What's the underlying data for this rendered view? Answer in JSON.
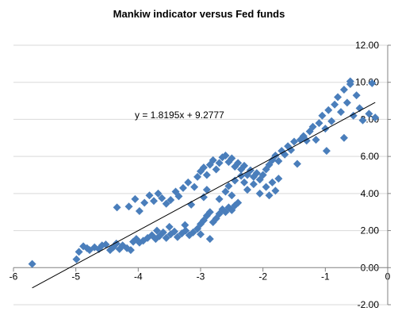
{
  "chart_data": {
    "type": "scatter",
    "title": "Mankiw indicator versus Fed funds",
    "xlim": [
      -6,
      0
    ],
    "ylim": [
      -2,
      12
    ],
    "x_ticks": [
      "-6",
      "-5",
      "-4",
      "-3",
      "-2",
      "-1",
      "0"
    ],
    "y_ticks": [
      "12.00",
      "10.00",
      "8.00",
      "6.00",
      "4.00",
      "2.00",
      "0.00",
      "-2.00"
    ],
    "grid": true,
    "marker_color": "#4a7ebb",
    "trendline": {
      "slope": 1.8195,
      "intercept": 9.2777,
      "x_range": [
        -5.7,
        -0.2
      ],
      "label": "y = 1.8195x + 9.2777"
    },
    "points": [
      [
        -5.7,
        0.2
      ],
      [
        -4.99,
        0.45
      ],
      [
        -4.95,
        0.85
      ],
      [
        -4.88,
        1.15
      ],
      [
        -4.82,
        1.05
      ],
      [
        -4.78,
        0.95
      ],
      [
        -4.7,
        1.1
      ],
      [
        -4.63,
        1.0
      ],
      [
        -4.58,
        1.2
      ],
      [
        -4.52,
        1.25
      ],
      [
        -4.45,
        0.95
      ],
      [
        -4.4,
        1.1
      ],
      [
        -4.35,
        1.3
      ],
      [
        -4.3,
        1.0
      ],
      [
        -4.25,
        1.2
      ],
      [
        -4.18,
        1.05
      ],
      [
        -4.12,
        0.95
      ],
      [
        -4.08,
        1.4
      ],
      [
        -4.03,
        1.55
      ],
      [
        -3.98,
        1.35
      ],
      [
        -3.92,
        1.45
      ],
      [
        -3.85,
        1.6
      ],
      [
        -3.78,
        1.75
      ],
      [
        -3.72,
        1.55
      ],
      [
        -3.66,
        1.7
      ],
      [
        -3.6,
        1.9
      ],
      [
        -3.55,
        1.6
      ],
      [
        -3.48,
        1.8
      ],
      [
        -3.42,
        1.95
      ],
      [
        -3.37,
        1.65
      ],
      [
        -3.3,
        1.85
      ],
      [
        -3.24,
        2.0
      ],
      [
        -3.18,
        1.75
      ],
      [
        -3.12,
        1.9
      ],
      [
        -3.05,
        2.1
      ],
      [
        -3.0,
        2.35
      ],
      [
        -2.95,
        2.55
      ],
      [
        -2.9,
        2.8
      ],
      [
        -2.85,
        3.0
      ],
      [
        -2.8,
        2.45
      ],
      [
        -2.75,
        2.65
      ],
      [
        -2.7,
        2.9
      ],
      [
        -2.65,
        3.15
      ],
      [
        -2.6,
        3.0
      ],
      [
        -2.55,
        3.25
      ],
      [
        -2.5,
        3.1
      ],
      [
        -2.45,
        3.35
      ],
      [
        -2.4,
        3.5
      ],
      [
        -4.34,
        3.25
      ],
      [
        -4.15,
        3.3
      ],
      [
        -4.05,
        3.7
      ],
      [
        -3.98,
        3.05
      ],
      [
        -3.9,
        3.5
      ],
      [
        -3.82,
        3.9
      ],
      [
        -3.75,
        3.6
      ],
      [
        -3.68,
        4.0
      ],
      [
        -3.62,
        3.75
      ],
      [
        -3.55,
        3.45
      ],
      [
        -3.48,
        3.65
      ],
      [
        -3.4,
        4.1
      ],
      [
        -3.35,
        3.85
      ],
      [
        -3.28,
        4.3
      ],
      [
        -3.2,
        4.6
      ],
      [
        -3.1,
        4.35
      ],
      [
        -3.05,
        4.9
      ],
      [
        -3.0,
        5.2
      ],
      [
        -2.95,
        5.4
      ],
      [
        -2.9,
        5.0
      ],
      [
        -2.85,
        5.55
      ],
      [
        -2.8,
        5.8
      ],
      [
        -2.75,
        5.3
      ],
      [
        -2.7,
        5.65
      ],
      [
        -2.65,
        5.95
      ],
      [
        -2.6,
        6.05
      ],
      [
        -2.55,
        5.7
      ],
      [
        -2.5,
        5.9
      ],
      [
        -2.45,
        5.45
      ],
      [
        -2.4,
        5.65
      ],
      [
        -2.35,
        5.3
      ],
      [
        -2.3,
        5.5
      ],
      [
        -2.25,
        5.0
      ],
      [
        -2.2,
        5.25
      ],
      [
        -2.15,
        4.9
      ],
      [
        -2.1,
        5.1
      ],
      [
        -2.05,
        4.75
      ],
      [
        -2.0,
        5.0
      ],
      [
        -1.95,
        5.3
      ],
      [
        -1.9,
        5.55
      ],
      [
        -1.85,
        5.8
      ],
      [
        -1.8,
        6.05
      ],
      [
        -1.75,
        5.75
      ],
      [
        -1.7,
        6.3
      ],
      [
        -1.65,
        6.1
      ],
      [
        -1.6,
        6.55
      ],
      [
        -1.55,
        6.35
      ],
      [
        -1.5,
        6.8
      ],
      [
        -1.45,
        5.6
      ],
      [
        -1.4,
        6.9
      ],
      [
        -1.35,
        7.1
      ],
      [
        -1.3,
        6.85
      ],
      [
        -1.25,
        7.35
      ],
      [
        -1.2,
        7.6
      ],
      [
        -1.15,
        6.9
      ],
      [
        -1.1,
        7.8
      ],
      [
        -1.05,
        8.2
      ],
      [
        -1.0,
        7.5
      ],
      [
        -0.98,
        6.3
      ],
      [
        -0.95,
        8.5
      ],
      [
        -0.9,
        7.9
      ],
      [
        -0.85,
        8.8
      ],
      [
        -0.8,
        9.2
      ],
      [
        -0.75,
        8.4
      ],
      [
        -0.7,
        9.6
      ],
      [
        -0.65,
        8.9
      ],
      [
        -0.6,
        9.9
      ],
      [
        -0.55,
        8.2
      ],
      [
        -0.5,
        9.3
      ],
      [
        -0.45,
        8.6
      ],
      [
        -0.4,
        7.95
      ],
      [
        -0.3,
        8.3
      ],
      [
        -0.2,
        8.1
      ],
      [
        -0.25,
        9.95
      ],
      [
        -0.6,
        10.05
      ],
      [
        -0.7,
        7.0
      ],
      [
        -2.25,
        4.2
      ],
      [
        -2.15,
        4.5
      ],
      [
        -2.05,
        4.0
      ],
      [
        -1.95,
        4.35
      ],
      [
        -1.9,
        3.9
      ],
      [
        -1.85,
        4.6
      ],
      [
        -1.8,
        4.15
      ],
      [
        -1.75,
        4.8
      ],
      [
        -2.6,
        4.1
      ],
      [
        -2.5,
        3.9
      ],
      [
        -2.7,
        3.7
      ],
      [
        -2.55,
        4.4
      ],
      [
        -2.45,
        4.7
      ],
      [
        -2.35,
        4.95
      ],
      [
        -2.3,
        4.6
      ],
      [
        -2.9,
        4.2
      ],
      [
        -2.95,
        3.8
      ],
      [
        -3.15,
        3.4
      ],
      [
        -3.0,
        1.8
      ],
      [
        -2.85,
        1.55
      ],
      [
        -3.25,
        2.3
      ],
      [
        -3.5,
        2.2
      ],
      [
        -3.7,
        2.0
      ]
    ]
  }
}
